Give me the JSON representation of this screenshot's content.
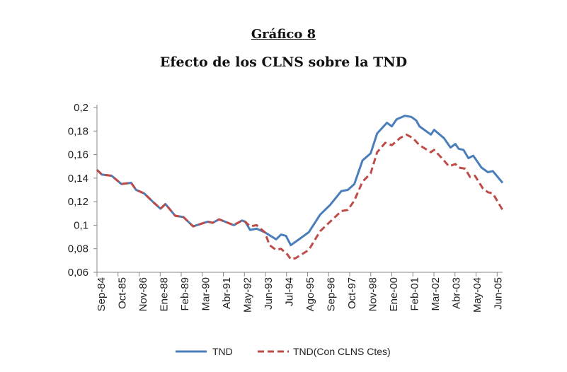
{
  "title": "Gráfico 8",
  "subtitle": "Efecto de los CLNS sobre la TND",
  "chart_data": {
    "type": "line",
    "title": "Efecto de los CLNS sobre la TND",
    "xlabel": "",
    "ylabel": "",
    "x_unit": "months since Sep-84",
    "xlim": [
      0,
      249
    ],
    "ylim": [
      0.06,
      0.2
    ],
    "y_ticks": [
      "0,06",
      "0,08",
      "0,1",
      "0,12",
      "0,14",
      "0,16",
      "0,18",
      "0,2"
    ],
    "categories": [
      "Sep-84",
      "Oct-85",
      "Nov-86",
      "Ene-88",
      "Feb-89",
      "Mar-90",
      "Abr-91",
      "May-92",
      "Jun-93",
      "Jul-94",
      "Ago-95",
      "Sep-96",
      "Oct-97",
      "Nov-98",
      "Ene-00",
      "Feb-01",
      "Mar-02",
      "Abr-03",
      "May-04",
      "Jun-05"
    ],
    "legend_position": "bottom",
    "series": [
      {
        "name": "TND",
        "color": "#4a7ebb",
        "style": "solid",
        "x": [
          0,
          3,
          9,
          15,
          21,
          24,
          29,
          35,
          39,
          42,
          48,
          53,
          59,
          68,
          71,
          75,
          84,
          89,
          91,
          94,
          98,
          103,
          110,
          113,
          116,
          119,
          123,
          130,
          137,
          143,
          150,
          154,
          158,
          163,
          168,
          172,
          178,
          181,
          184,
          189,
          193,
          196,
          198,
          205,
          207,
          213,
          217,
          220,
          222,
          225,
          228,
          231,
          236,
          240,
          243,
          249
        ],
        "values": [
          0.147,
          0.143,
          0.142,
          0.135,
          0.136,
          0.13,
          0.127,
          0.119,
          0.114,
          0.118,
          0.108,
          0.107,
          0.099,
          0.103,
          0.102,
          0.105,
          0.1,
          0.104,
          0.103,
          0.096,
          0.097,
          0.094,
          0.088,
          0.092,
          0.091,
          0.083,
          0.087,
          0.094,
          0.109,
          0.117,
          0.129,
          0.13,
          0.135,
          0.155,
          0.161,
          0.178,
          0.187,
          0.184,
          0.19,
          0.193,
          0.192,
          0.189,
          0.184,
          0.177,
          0.181,
          0.174,
          0.166,
          0.169,
          0.165,
          0.164,
          0.157,
          0.159,
          0.149,
          0.145,
          0.146,
          0.136
        ]
      },
      {
        "name": "TND(Con CLNS Ctes)",
        "color": "#be4b48",
        "style": "dashed",
        "x": [
          0,
          3,
          9,
          15,
          21,
          24,
          29,
          35,
          39,
          42,
          48,
          53,
          59,
          68,
          71,
          75,
          84,
          89,
          91,
          94,
          98,
          103,
          106,
          110,
          113,
          117,
          119,
          122,
          130,
          137,
          150,
          154,
          158,
          163,
          168,
          172,
          177,
          181,
          186,
          190,
          194,
          198,
          205,
          207,
          213,
          216,
          220,
          222,
          226,
          229,
          232,
          237,
          240,
          243,
          249
        ],
        "values": [
          0.147,
          0.143,
          0.142,
          0.135,
          0.136,
          0.13,
          0.127,
          0.119,
          0.114,
          0.118,
          0.108,
          0.107,
          0.099,
          0.103,
          0.102,
          0.105,
          0.1,
          0.104,
          0.103,
          0.099,
          0.1,
          0.094,
          0.083,
          0.079,
          0.08,
          0.075,
          0.071,
          0.072,
          0.079,
          0.095,
          0.112,
          0.113,
          0.121,
          0.137,
          0.144,
          0.162,
          0.17,
          0.168,
          0.174,
          0.177,
          0.174,
          0.168,
          0.162,
          0.164,
          0.155,
          0.15,
          0.152,
          0.149,
          0.148,
          0.141,
          0.142,
          0.131,
          0.128,
          0.127,
          0.113
        ]
      }
    ]
  }
}
